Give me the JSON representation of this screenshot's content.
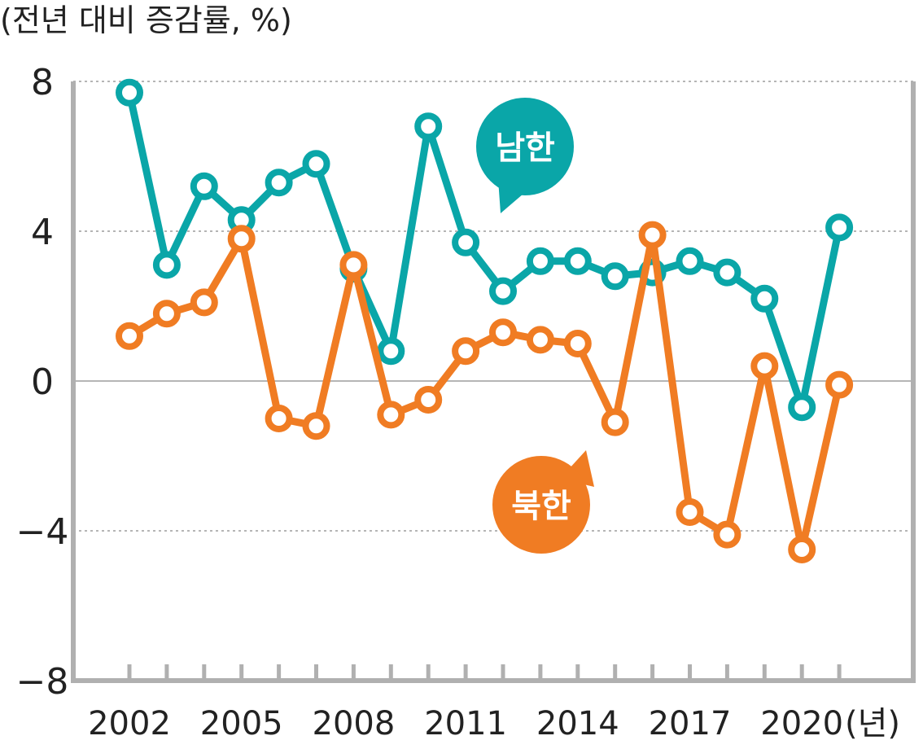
{
  "chart_data": {
    "type": "line",
    "y_axis_title": "(전년 대비 증감률, %)",
    "x_unit": "(년)",
    "ylim": [
      -8,
      8
    ],
    "y_ticks": [
      8,
      4,
      0,
      -4,
      -8
    ],
    "y_tick_labels": [
      "8",
      "4",
      "0",
      "−4",
      "−8"
    ],
    "x": [
      2002,
      2003,
      2004,
      2005,
      2006,
      2007,
      2008,
      2009,
      2010,
      2011,
      2012,
      2013,
      2014,
      2015,
      2016,
      2017,
      2018,
      2019,
      2020,
      2021
    ],
    "x_tick_labels": [
      "2002",
      "2005",
      "2008",
      "2011",
      "2014",
      "2017",
      "2020"
    ],
    "series": [
      {
        "name": "남한",
        "color": "#0aa6a8",
        "values": [
          7.7,
          3.1,
          5.2,
          4.3,
          5.3,
          5.8,
          3.0,
          0.8,
          6.8,
          3.7,
          2.4,
          3.2,
          3.2,
          2.8,
          2.9,
          3.2,
          2.9,
          2.2,
          -0.7,
          4.1
        ]
      },
      {
        "name": "북한",
        "color": "#f07c23",
        "values": [
          1.2,
          1.8,
          2.1,
          3.8,
          -1.0,
          -1.2,
          3.1,
          -0.9,
          -0.5,
          0.8,
          1.3,
          1.1,
          1.0,
          -1.1,
          3.9,
          -3.5,
          -4.1,
          0.4,
          -4.5,
          -0.1
        ]
      }
    ],
    "grid": "dashed horizontal at 8, 4, -4",
    "legend": "speech-bubble labels: 남한 top-right, 북한 lower-right"
  }
}
